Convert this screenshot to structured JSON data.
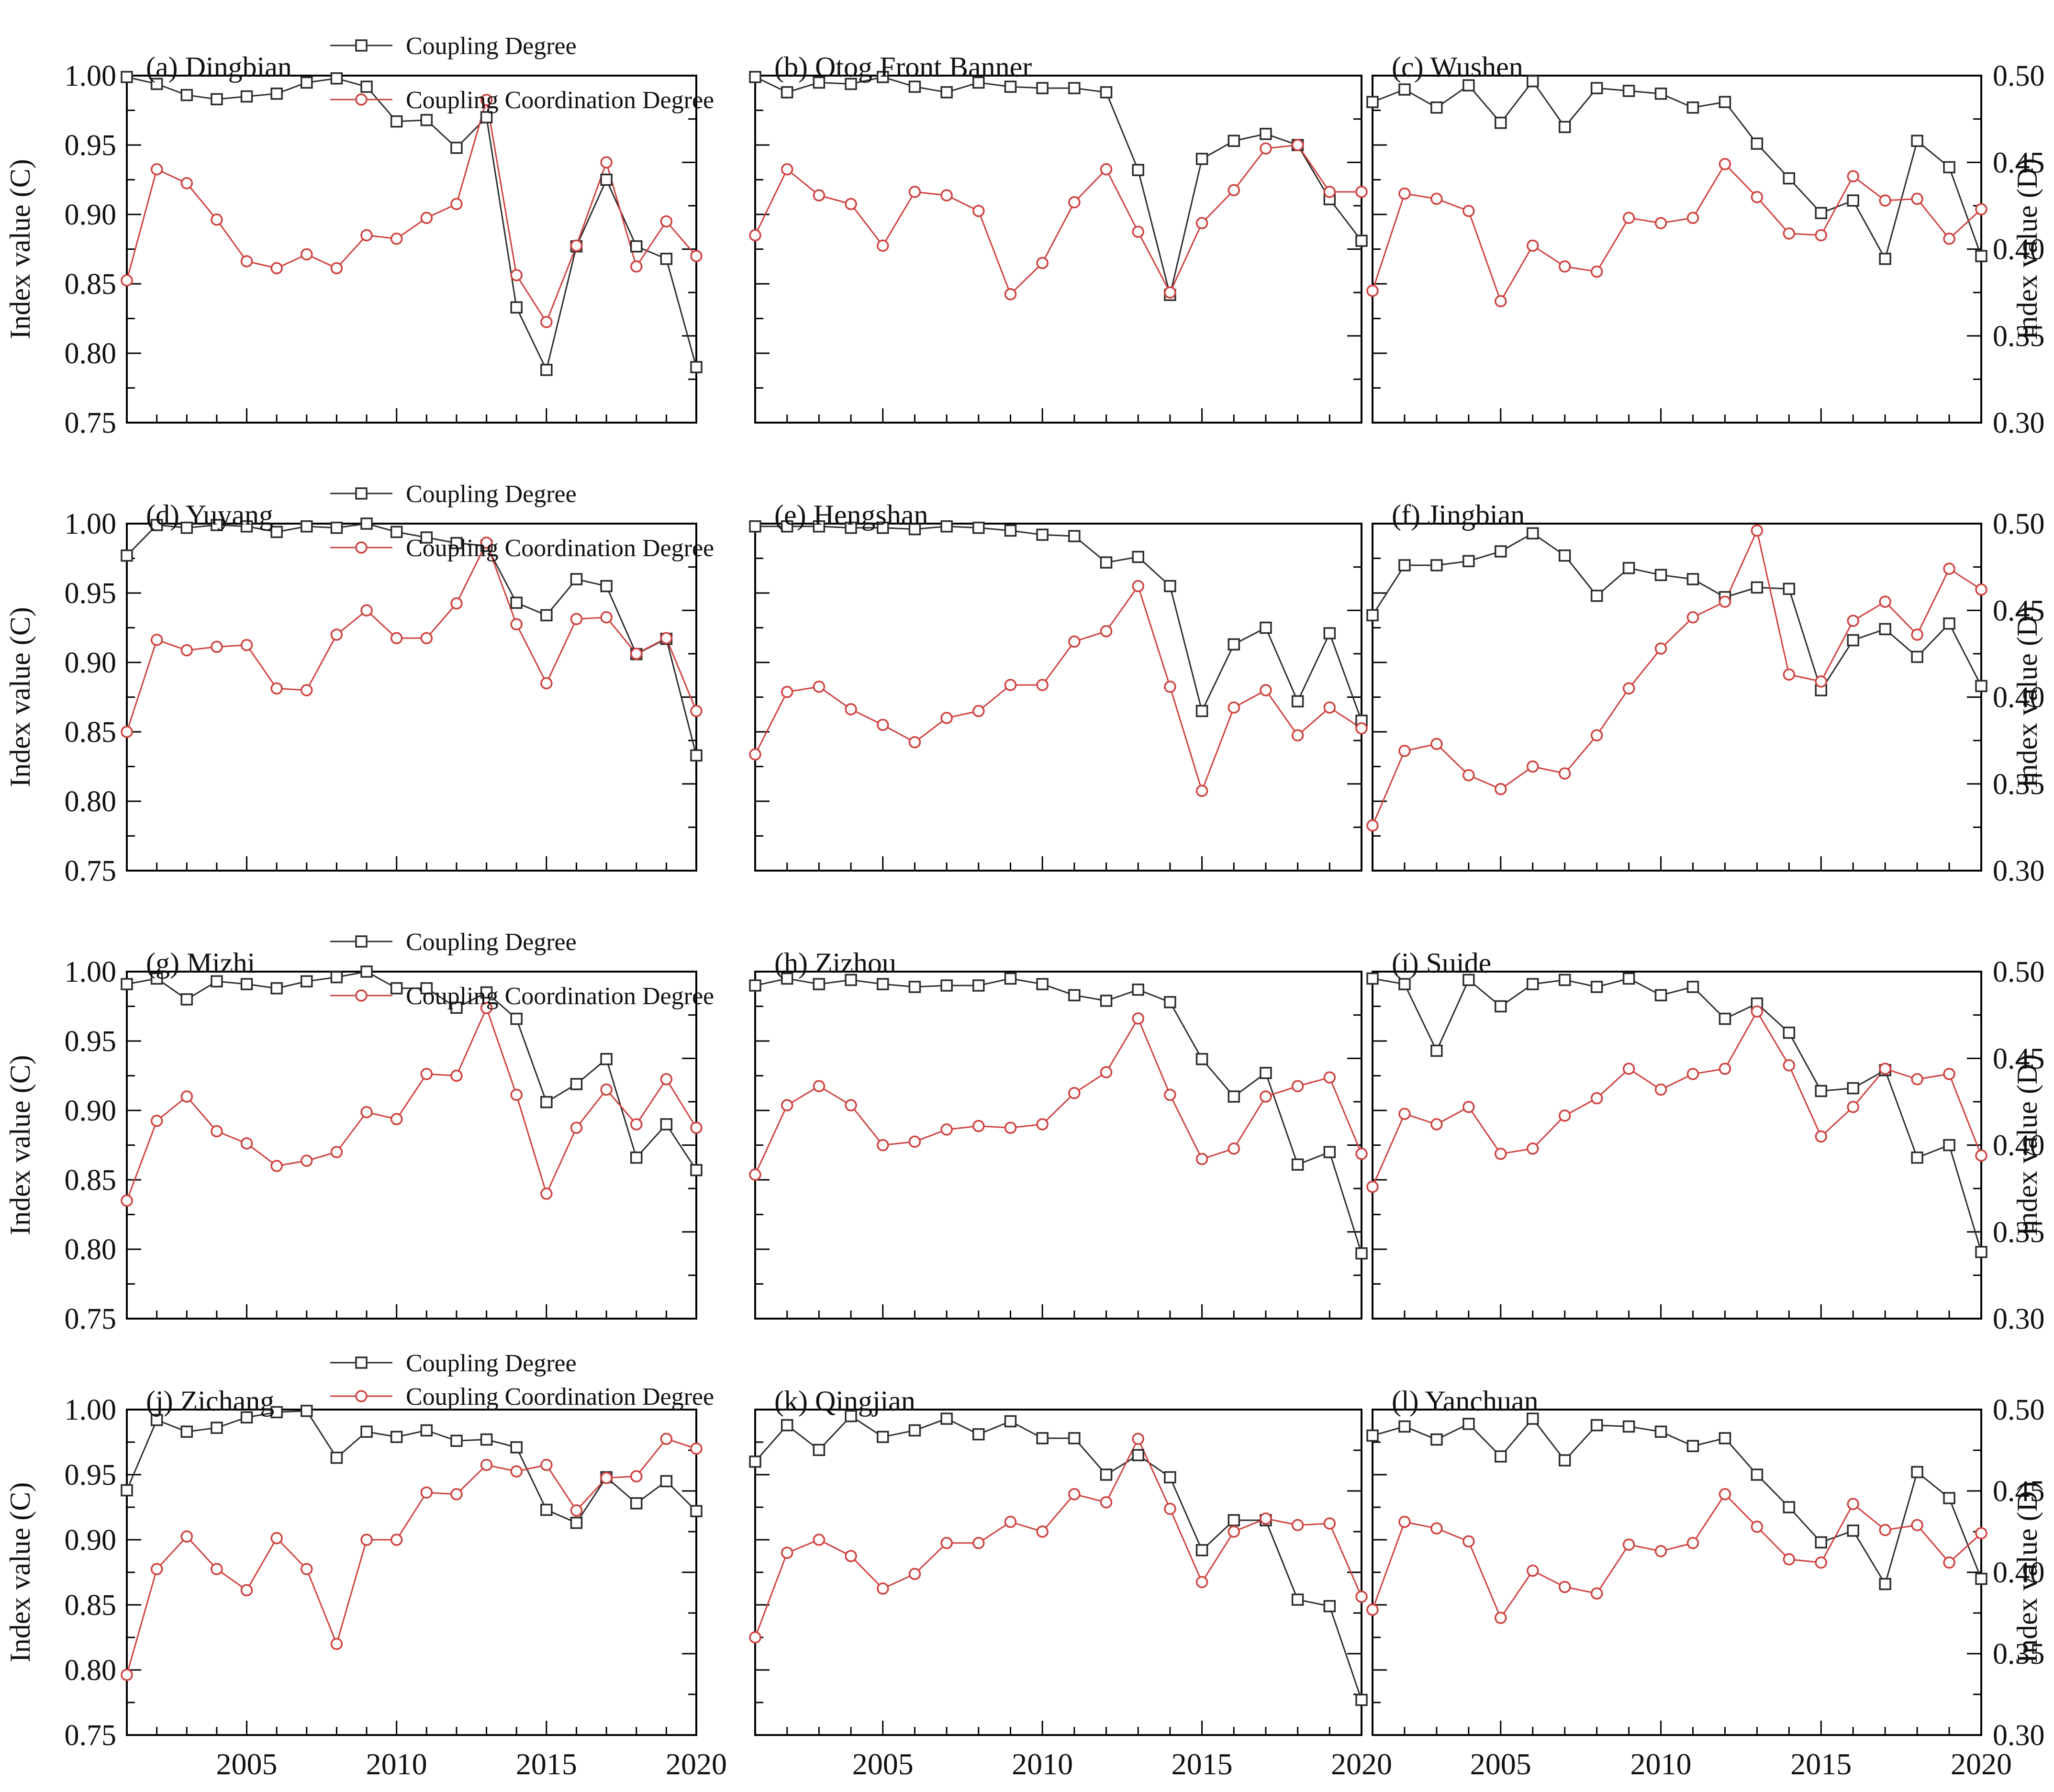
{
  "figure": {
    "legend": {
      "coupling_label": "Coupling Degree",
      "coordination_label": "Coupling Coordination Degree"
    },
    "left_axis_title": "Index value (C)",
    "right_axis_title": "Index value (D)",
    "left_tick_labels": [
      "1.00",
      "0.95",
      "0.90",
      "0.85",
      "0.80",
      "0.75"
    ],
    "right_tick_labels": [
      "0.50",
      "0.45",
      "0.40",
      "0.35",
      "0.30"
    ],
    "x_tick_labels": [
      "2005",
      "2010",
      "2015",
      "2020"
    ],
    "colors": {
      "coupling": "#2d2d2d",
      "coordination": "#cf423f",
      "axis": "#000000"
    }
  },
  "chart_data": [
    {
      "type": "line",
      "panel": "(a)",
      "title": "Dingbian",
      "xlim": [
        2001,
        2020
      ],
      "ylim_C": [
        0.75,
        1.0
      ],
      "ylim_D": [
        0.3,
        0.5
      ],
      "x": [
        2001,
        2002,
        2003,
        2004,
        2005,
        2006,
        2007,
        2008,
        2009,
        2010,
        2011,
        2012,
        2013,
        2014,
        2015,
        2016,
        2017,
        2018,
        2019,
        2020
      ],
      "has_legend": true,
      "series": [
        {
          "name": "Coupling Degree",
          "axis": "C",
          "values": [
            0.999,
            0.994,
            0.986,
            0.983,
            0.985,
            0.987,
            0.995,
            0.998,
            0.992,
            0.967,
            0.968,
            0.948,
            0.97,
            0.833,
            0.788,
            0.877,
            0.925,
            0.877,
            0.868,
            0.79
          ]
        },
        {
          "name": "Coupling Coordination Degree",
          "axis": "D",
          "values": [
            0.382,
            0.446,
            0.438,
            0.417,
            0.393,
            0.389,
            0.397,
            0.389,
            0.408,
            0.406,
            0.418,
            0.426,
            0.486,
            0.385,
            0.358,
            0.402,
            0.45,
            0.39,
            0.416,
            0.396
          ]
        }
      ]
    },
    {
      "type": "line",
      "panel": "(b)",
      "title": "Otog Front Banner",
      "xlim": [
        2001,
        2020
      ],
      "ylim_C": [
        0.75,
        1.0
      ],
      "ylim_D": [
        0.3,
        0.5
      ],
      "x": [
        2001,
        2002,
        2003,
        2004,
        2005,
        2006,
        2007,
        2008,
        2009,
        2010,
        2011,
        2012,
        2013,
        2014,
        2015,
        2016,
        2017,
        2018,
        2019,
        2020
      ],
      "has_legend": false,
      "series": [
        {
          "name": "Coupling Degree",
          "axis": "C",
          "values": [
            0.999,
            0.988,
            0.995,
            0.994,
            0.999,
            0.992,
            0.988,
            0.995,
            0.992,
            0.991,
            0.991,
            0.988,
            0.932,
            0.842,
            0.94,
            0.953,
            0.958,
            0.95,
            0.911,
            0.881
          ]
        },
        {
          "name": "Coupling Coordination Degree",
          "axis": "D",
          "values": [
            0.408,
            0.446,
            0.431,
            0.426,
            0.402,
            0.433,
            0.431,
            0.422,
            0.374,
            0.392,
            0.427,
            0.446,
            0.41,
            0.375,
            0.415,
            0.434,
            0.458,
            0.46,
            0.433,
            0.433
          ]
        }
      ]
    },
    {
      "type": "line",
      "panel": "(c)",
      "title": "Wushen",
      "xlim": [
        2001,
        2020
      ],
      "ylim_C": [
        0.75,
        1.0
      ],
      "ylim_D": [
        0.3,
        0.5
      ],
      "x": [
        2001,
        2002,
        2003,
        2004,
        2005,
        2006,
        2007,
        2008,
        2009,
        2010,
        2011,
        2012,
        2013,
        2014,
        2015,
        2016,
        2017,
        2018,
        2019,
        2020
      ],
      "has_legend": false,
      "series": [
        {
          "name": "Coupling Degree",
          "axis": "C",
          "values": [
            0.981,
            0.99,
            0.977,
            0.993,
            0.966,
            0.996,
            0.963,
            0.991,
            0.989,
            0.987,
            0.977,
            0.981,
            0.951,
            0.926,
            0.901,
            0.91,
            0.868,
            0.953,
            0.934,
            0.87
          ]
        },
        {
          "name": "Coupling Coordination Degree",
          "axis": "D",
          "values": [
            0.376,
            0.432,
            0.429,
            0.422,
            0.37,
            0.402,
            0.39,
            0.387,
            0.418,
            0.415,
            0.418,
            0.449,
            0.43,
            0.409,
            0.408,
            0.442,
            0.428,
            0.429,
            0.406,
            0.423
          ]
        }
      ]
    },
    {
      "type": "line",
      "panel": "(d)",
      "title": "Yuyang",
      "xlim": [
        2001,
        2020
      ],
      "ylim_C": [
        0.75,
        1.0
      ],
      "ylim_D": [
        0.3,
        0.5
      ],
      "x": [
        2001,
        2002,
        2003,
        2004,
        2005,
        2006,
        2007,
        2008,
        2009,
        2010,
        2011,
        2012,
        2013,
        2014,
        2015,
        2016,
        2017,
        2018,
        2019,
        2020
      ],
      "has_legend": true,
      "series": [
        {
          "name": "Coupling Degree",
          "axis": "C",
          "values": [
            0.977,
            0.999,
            0.997,
            0.999,
            0.998,
            0.994,
            0.998,
            0.997,
            1.0,
            0.994,
            0.99,
            0.986,
            0.984,
            0.943,
            0.934,
            0.96,
            0.955,
            0.906,
            0.917,
            0.833
          ]
        },
        {
          "name": "Coupling Coordination Degree",
          "axis": "D",
          "values": [
            0.38,
            0.433,
            0.427,
            0.429,
            0.43,
            0.405,
            0.404,
            0.436,
            0.45,
            0.434,
            0.434,
            0.454,
            0.489,
            0.442,
            0.408,
            0.445,
            0.446,
            0.425,
            0.434,
            0.392
          ]
        }
      ]
    },
    {
      "type": "line",
      "panel": "(e)",
      "title": "Hengshan",
      "xlim": [
        2001,
        2020
      ],
      "ylim_C": [
        0.75,
        1.0
      ],
      "ylim_D": [
        0.3,
        0.5
      ],
      "x": [
        2001,
        2002,
        2003,
        2004,
        2005,
        2006,
        2007,
        2008,
        2009,
        2010,
        2011,
        2012,
        2013,
        2014,
        2015,
        2016,
        2017,
        2018,
        2019,
        2020
      ],
      "has_legend": false,
      "series": [
        {
          "name": "Coupling Degree",
          "axis": "C",
          "values": [
            0.998,
            0.998,
            0.998,
            0.997,
            0.997,
            0.996,
            0.998,
            0.997,
            0.995,
            0.992,
            0.991,
            0.972,
            0.976,
            0.955,
            0.865,
            0.913,
            0.925,
            0.872,
            0.921,
            0.858
          ]
        },
        {
          "name": "Coupling Coordination Degree",
          "axis": "D",
          "values": [
            0.367,
            0.403,
            0.406,
            0.393,
            0.384,
            0.374,
            0.388,
            0.392,
            0.407,
            0.407,
            0.432,
            0.438,
            0.464,
            0.406,
            0.346,
            0.394,
            0.404,
            0.378,
            0.394,
            0.382
          ]
        }
      ]
    },
    {
      "type": "line",
      "panel": "(f)",
      "title": "Jingbian",
      "xlim": [
        2001,
        2020
      ],
      "ylim_C": [
        0.75,
        1.0
      ],
      "ylim_D": [
        0.3,
        0.5
      ],
      "x": [
        2001,
        2002,
        2003,
        2004,
        2005,
        2006,
        2007,
        2008,
        2009,
        2010,
        2011,
        2012,
        2013,
        2014,
        2015,
        2016,
        2017,
        2018,
        2019,
        2020
      ],
      "has_legend": false,
      "series": [
        {
          "name": "Coupling Degree",
          "axis": "C",
          "values": [
            0.934,
            0.97,
            0.97,
            0.973,
            0.98,
            0.993,
            0.977,
            0.948,
            0.968,
            0.963,
            0.96,
            0.947,
            0.954,
            0.953,
            0.88,
            0.916,
            0.924,
            0.904,
            0.928,
            0.883
          ]
        },
        {
          "name": "Coupling Coordination Degree",
          "axis": "D",
          "values": [
            0.326,
            0.369,
            0.373,
            0.355,
            0.347,
            0.36,
            0.356,
            0.378,
            0.405,
            0.428,
            0.446,
            0.455,
            0.496,
            0.413,
            0.409,
            0.444,
            0.455,
            0.436,
            0.474,
            0.462
          ]
        }
      ]
    },
    {
      "type": "line",
      "panel": "(g)",
      "title": "Mizhi",
      "xlim": [
        2001,
        2020
      ],
      "ylim_C": [
        0.75,
        1.0
      ],
      "ylim_D": [
        0.3,
        0.5
      ],
      "x": [
        2001,
        2002,
        2003,
        2004,
        2005,
        2006,
        2007,
        2008,
        2009,
        2010,
        2011,
        2012,
        2013,
        2014,
        2015,
        2016,
        2017,
        2018,
        2019,
        2020
      ],
      "has_legend": true,
      "series": [
        {
          "name": "Coupling Degree",
          "axis": "C",
          "values": [
            0.991,
            0.995,
            0.98,
            0.993,
            0.991,
            0.988,
            0.993,
            0.996,
            1.0,
            0.988,
            0.988,
            0.974,
            0.985,
            0.966,
            0.906,
            0.919,
            0.937,
            0.866,
            0.89,
            0.857
          ]
        },
        {
          "name": "Coupling Coordination Degree",
          "axis": "D",
          "values": [
            0.368,
            0.414,
            0.428,
            0.408,
            0.401,
            0.388,
            0.391,
            0.396,
            0.419,
            0.415,
            0.441,
            0.44,
            0.479,
            0.429,
            0.372,
            0.41,
            0.432,
            0.412,
            0.438,
            0.41
          ]
        }
      ]
    },
    {
      "type": "line",
      "panel": "(h)",
      "title": "Zizhou",
      "xlim": [
        2001,
        2020
      ],
      "ylim_C": [
        0.75,
        1.0
      ],
      "ylim_D": [
        0.3,
        0.5
      ],
      "x": [
        2001,
        2002,
        2003,
        2004,
        2005,
        2006,
        2007,
        2008,
        2009,
        2010,
        2011,
        2012,
        2013,
        2014,
        2015,
        2016,
        2017,
        2018,
        2019,
        2020
      ],
      "has_legend": false,
      "series": [
        {
          "name": "Coupling Degree",
          "axis": "C",
          "values": [
            0.99,
            0.995,
            0.991,
            0.994,
            0.991,
            0.989,
            0.99,
            0.99,
            0.995,
            0.991,
            0.983,
            0.979,
            0.987,
            0.978,
            0.937,
            0.91,
            0.927,
            0.861,
            0.87,
            0.797
          ]
        },
        {
          "name": "Coupling Coordination Degree",
          "axis": "D",
          "values": [
            0.383,
            0.423,
            0.434,
            0.423,
            0.4,
            0.402,
            0.409,
            0.411,
            0.41,
            0.412,
            0.43,
            0.442,
            0.473,
            0.429,
            0.392,
            0.398,
            0.428,
            0.434,
            0.439,
            0.395
          ]
        }
      ]
    },
    {
      "type": "line",
      "panel": "(i)",
      "title": "Suide",
      "xlim": [
        2001,
        2020
      ],
      "ylim_C": [
        0.75,
        1.0
      ],
      "ylim_D": [
        0.3,
        0.5
      ],
      "x": [
        2001,
        2002,
        2003,
        2004,
        2005,
        2006,
        2007,
        2008,
        2009,
        2010,
        2011,
        2012,
        2013,
        2014,
        2015,
        2016,
        2017,
        2018,
        2019,
        2020
      ],
      "has_legend": false,
      "series": [
        {
          "name": "Coupling Degree",
          "axis": "C",
          "values": [
            0.995,
            0.991,
            0.943,
            0.994,
            0.975,
            0.991,
            0.994,
            0.989,
            0.995,
            0.983,
            0.989,
            0.966,
            0.977,
            0.956,
            0.914,
            0.916,
            0.929,
            0.866,
            0.875,
            0.798
          ]
        },
        {
          "name": "Coupling Coordination Degree",
          "axis": "D",
          "values": [
            0.376,
            0.418,
            0.412,
            0.422,
            0.395,
            0.398,
            0.417,
            0.427,
            0.444,
            0.432,
            0.441,
            0.444,
            0.477,
            0.446,
            0.405,
            0.422,
            0.444,
            0.438,
            0.441,
            0.394
          ]
        }
      ]
    },
    {
      "type": "line",
      "panel": "(j)",
      "title": "Zichang",
      "xlim": [
        2001,
        2020
      ],
      "ylim_C": [
        0.75,
        1.0
      ],
      "ylim_D": [
        0.3,
        0.5
      ],
      "x": [
        2001,
        2002,
        2003,
        2004,
        2005,
        2006,
        2007,
        2008,
        2009,
        2010,
        2011,
        2012,
        2013,
        2014,
        2015,
        2016,
        2017,
        2018,
        2019,
        2020
      ],
      "has_legend": true,
      "series": [
        {
          "name": "Coupling Degree",
          "axis": "C",
          "values": [
            0.938,
            0.992,
            0.983,
            0.986,
            0.994,
            0.998,
            0.999,
            0.963,
            0.983,
            0.979,
            0.984,
            0.976,
            0.977,
            0.971,
            0.923,
            0.913,
            0.948,
            0.928,
            0.945,
            0.922
          ]
        },
        {
          "name": "Coupling Coordination Degree",
          "axis": "D",
          "values": [
            0.337,
            0.402,
            0.422,
            0.402,
            0.389,
            0.421,
            0.402,
            0.356,
            0.42,
            0.42,
            0.449,
            0.448,
            0.466,
            0.462,
            0.466,
            0.438,
            0.458,
            0.459,
            0.482,
            0.476
          ]
        }
      ]
    },
    {
      "type": "line",
      "panel": "(k)",
      "title": "Qingjian",
      "xlim": [
        2001,
        2020
      ],
      "ylim_C": [
        0.75,
        1.0
      ],
      "ylim_D": [
        0.3,
        0.5
      ],
      "x": [
        2001,
        2002,
        2003,
        2004,
        2005,
        2006,
        2007,
        2008,
        2009,
        2010,
        2011,
        2012,
        2013,
        2014,
        2015,
        2016,
        2017,
        2018,
        2019,
        2020
      ],
      "has_legend": false,
      "series": [
        {
          "name": "Coupling Degree",
          "axis": "C",
          "values": [
            0.96,
            0.988,
            0.969,
            0.995,
            0.979,
            0.984,
            0.993,
            0.981,
            0.991,
            0.978,
            0.978,
            0.95,
            0.965,
            0.948,
            0.892,
            0.915,
            0.915,
            0.854,
            0.849,
            0.777
          ]
        },
        {
          "name": "Coupling Coordination Degree",
          "axis": "D",
          "values": [
            0.36,
            0.412,
            0.42,
            0.41,
            0.39,
            0.399,
            0.418,
            0.418,
            0.431,
            0.425,
            0.448,
            0.443,
            0.482,
            0.439,
            0.394,
            0.425,
            0.433,
            0.429,
            0.43,
            0.385
          ]
        }
      ]
    },
    {
      "type": "line",
      "panel": "(l)",
      "title": "Yanchuan",
      "xlim": [
        2001,
        2020
      ],
      "ylim_C": [
        0.75,
        1.0
      ],
      "ylim_D": [
        0.3,
        0.5
      ],
      "x": [
        2001,
        2002,
        2003,
        2004,
        2005,
        2006,
        2007,
        2008,
        2009,
        2010,
        2011,
        2012,
        2013,
        2014,
        2015,
        2016,
        2017,
        2018,
        2019,
        2020
      ],
      "has_legend": false,
      "series": [
        {
          "name": "Coupling Degree",
          "axis": "C",
          "values": [
            0.98,
            0.987,
            0.977,
            0.989,
            0.964,
            0.993,
            0.961,
            0.988,
            0.987,
            0.983,
            0.972,
            0.978,
            0.95,
            0.925,
            0.898,
            0.907,
            0.866,
            0.952,
            0.932,
            0.87
          ]
        },
        {
          "name": "Coupling Coordination Degree",
          "axis": "D",
          "values": [
            0.377,
            0.431,
            0.427,
            0.419,
            0.372,
            0.401,
            0.391,
            0.387,
            0.417,
            0.413,
            0.418,
            0.448,
            0.428,
            0.408,
            0.406,
            0.442,
            0.426,
            0.429,
            0.406,
            0.424
          ]
        }
      ]
    }
  ]
}
